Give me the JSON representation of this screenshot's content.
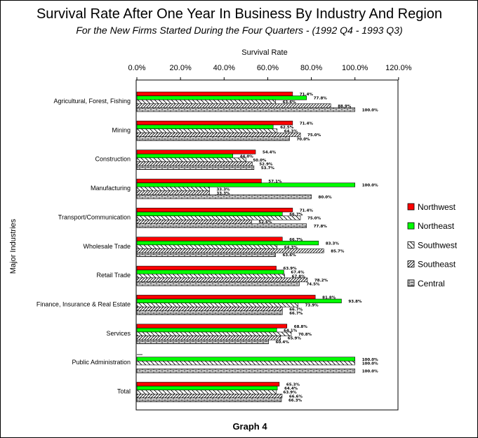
{
  "chart_data": {
    "type": "bar",
    "orientation": "horizontal",
    "title": "Survival Rate After One Year In Business By Industry And Region",
    "subtitle": "For the New Firms Started During the Four Quarters - (1992 Q4 - 1993 Q3)",
    "xlabel": "Survival Rate",
    "ylabel": "Major Industries",
    "footer": "Graph 4",
    "xlim": [
      0,
      120
    ],
    "xticks": [
      "0.0%",
      "20.0%",
      "40.0%",
      "60.0%",
      "80.0%",
      "100.0%",
      "120.0%"
    ],
    "legend_position": "right",
    "categories": [
      "Agricultural, Forest, Fishing",
      "Mining",
      "Construction",
      "Manufacturing",
      "Transport/Communication",
      "Wholesale Trade",
      "Retail Trade",
      "Finance, Insurance & Real Estate",
      "Services",
      "Public Administration",
      "Total"
    ],
    "series": [
      {
        "name": "Northwest",
        "color": "#ff0000",
        "pattern": "solid",
        "values": [
          71.4,
          71.4,
          54.4,
          57.1,
          71.4,
          66.7,
          63.9,
          81.8,
          68.8,
          0,
          65.3
        ],
        "labels": [
          "71.4%",
          "71.4%",
          "54.4%",
          "57.1%",
          "71.4%",
          "66.7%",
          "63.9%",
          "81.8%",
          "68.8%",
          "",
          "65.3%"
        ]
      },
      {
        "name": "Northeast",
        "color": "#00ff00",
        "pattern": "solid",
        "values": [
          77.8,
          62.5,
          44.0,
          100.0,
          66.7,
          83.3,
          67.4,
          93.8,
          64.1,
          100.0,
          64.4
        ],
        "labels": [
          "77.8%",
          "62.5%",
          "44.0%",
          "100.0%",
          "66.7%",
          "83.3%",
          "67.4%",
          "93.8%",
          "64.1%",
          "100.0%",
          "64.4%"
        ]
      },
      {
        "name": "Southwest",
        "color": "#000000",
        "pattern": "diagonal-light",
        "values": [
          63.6,
          64.3,
          50.0,
          33.3,
          75.0,
          64.3,
          67.8,
          73.9,
          70.8,
          100.0,
          63.9
        ],
        "labels": [
          "63.6%",
          "64.3%",
          "50.0%",
          "33.3%",
          "75.0%",
          "64.3%",
          "67.8%",
          "73.9%",
          "70.8%",
          "100.0%",
          "63.9%"
        ]
      },
      {
        "name": "Southeast",
        "color": "#000000",
        "pattern": "diagonal-dense",
        "values": [
          88.9,
          75.0,
          52.9,
          33.3,
          52.6,
          85.7,
          78.2,
          66.7,
          65.9,
          0,
          66.6
        ],
        "labels": [
          "88.9%",
          "75.0%",
          "52.9%",
          "33.3%",
          "52.6%",
          "85.7%",
          "78.2%",
          "66.7%",
          "65.9%",
          "",
          "66.6%"
        ]
      },
      {
        "name": "Central",
        "color": "#000000",
        "pattern": "brick",
        "values": [
          100.0,
          70.0,
          53.7,
          80.0,
          77.8,
          63.6,
          74.5,
          66.7,
          60.4,
          100.0,
          66.3
        ],
        "labels": [
          "100.0%",
          "70.0%",
          "53.7%",
          "80.0%",
          "77.8%",
          "63.6%",
          "74.5%",
          "66.7%",
          "60.4%",
          "100.0%",
          "66.3%"
        ]
      }
    ]
  }
}
